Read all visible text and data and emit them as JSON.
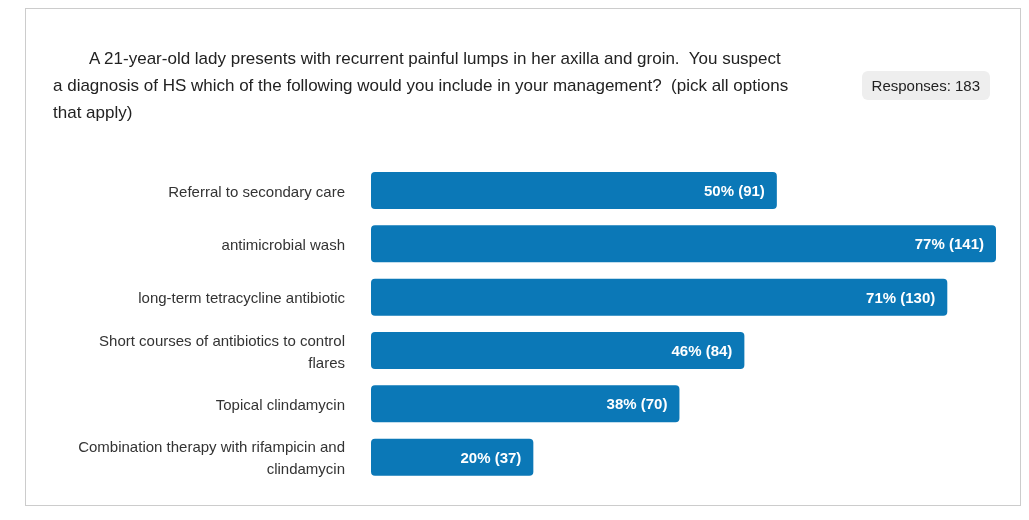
{
  "chart_data": {
    "type": "bar",
    "orientation": "horizontal",
    "title": "A 21-year-old lady presents with recurrent painful lumps in her axilla and groin.  You suspect a diagnosis of HS which of the following would you include in your management?  (pick all options that apply)",
    "annotations": [
      "Responses: 183"
    ],
    "categories": [
      "Referral to secondary care",
      "antimicrobial wash",
      "long-term tetracycline antibiotic",
      "Short courses of antibiotics to control flares",
      "Topical clindamycin",
      "Combination therapy with rifampicin and clindamycin"
    ],
    "values": [
      50,
      77,
      71,
      46,
      38,
      20
    ],
    "value_labels": [
      "50% (91)",
      "77% (141)",
      "71% (130)",
      "46% (84)",
      "38% (70)",
      "20% (37)"
    ],
    "color": "#0b78b7"
  }
}
